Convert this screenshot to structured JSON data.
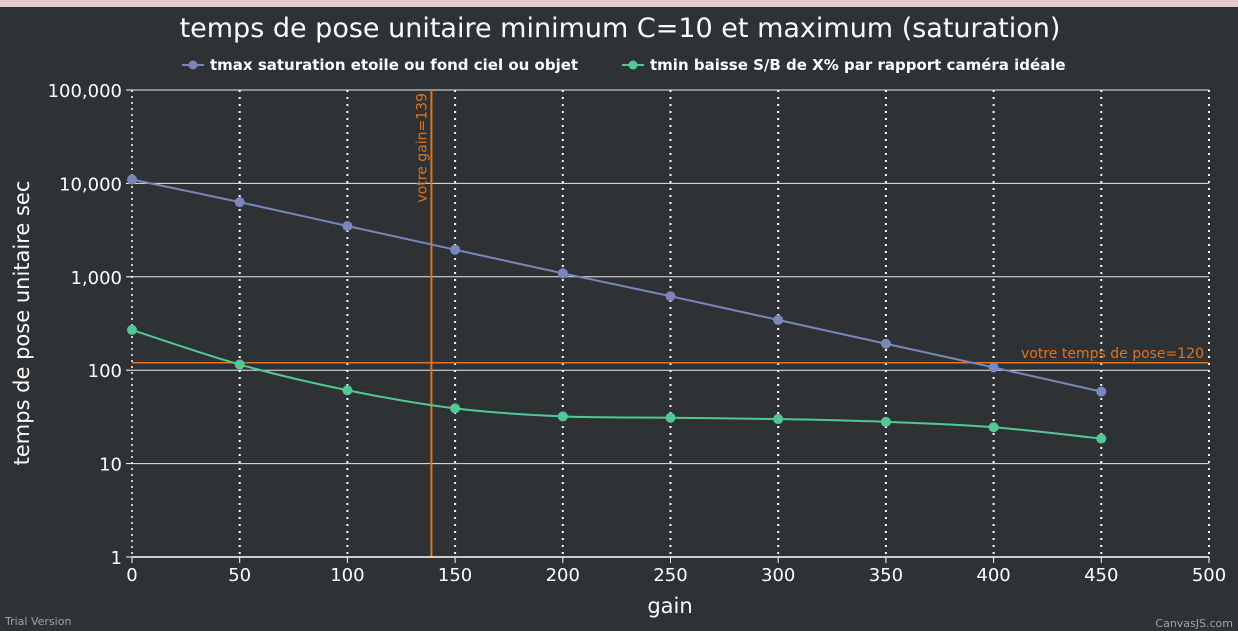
{
  "chart_data": {
    "type": "line",
    "title": "temps de pose unitaire minimum C=10 et maximum (saturation)",
    "xlabel": "gain",
    "ylabel": "temps de pose unitaire sec",
    "xlim": [
      0,
      500
    ],
    "x_ticks": [
      "0",
      "50",
      "100",
      "150",
      "200",
      "250",
      "300",
      "350",
      "400",
      "450",
      "500"
    ],
    "ylim": [
      1,
      100000
    ],
    "y_scale": "log",
    "y_ticks": [
      "1",
      "10",
      "100",
      "1,000",
      "10,000",
      "100,000"
    ],
    "legend_position": "top",
    "x_grid": "dotted",
    "y_grid": "solid",
    "series": [
      {
        "name": "tmax saturation etoile ou fond ciel ou objet",
        "color": "#7a86bc",
        "x": [
          0,
          50,
          100,
          150,
          200,
          250,
          300,
          350,
          400,
          450
        ],
        "values": [
          11000,
          6300,
          3500,
          1950,
          1090,
          620,
          345,
          192,
          107,
          59
        ]
      },
      {
        "name": "tmin baisse S/B de X% par rapport caméra idéale",
        "color": "#52c995",
        "x": [
          0,
          50,
          100,
          150,
          200,
          250,
          300,
          350,
          400,
          450
        ],
        "values": [
          270,
          115,
          61,
          39,
          32,
          31,
          30,
          28,
          24.5,
          18.5
        ]
      }
    ],
    "annotations": [
      {
        "axis": "x",
        "value": 139,
        "label": "votre gain=139",
        "color": "#e0731e"
      },
      {
        "axis": "y",
        "value": 120,
        "label": "votre temps de pose=120",
        "color": "#e0731e"
      }
    ]
  },
  "footer": {
    "left": "Trial Version",
    "right": "CanvasJS.com"
  }
}
